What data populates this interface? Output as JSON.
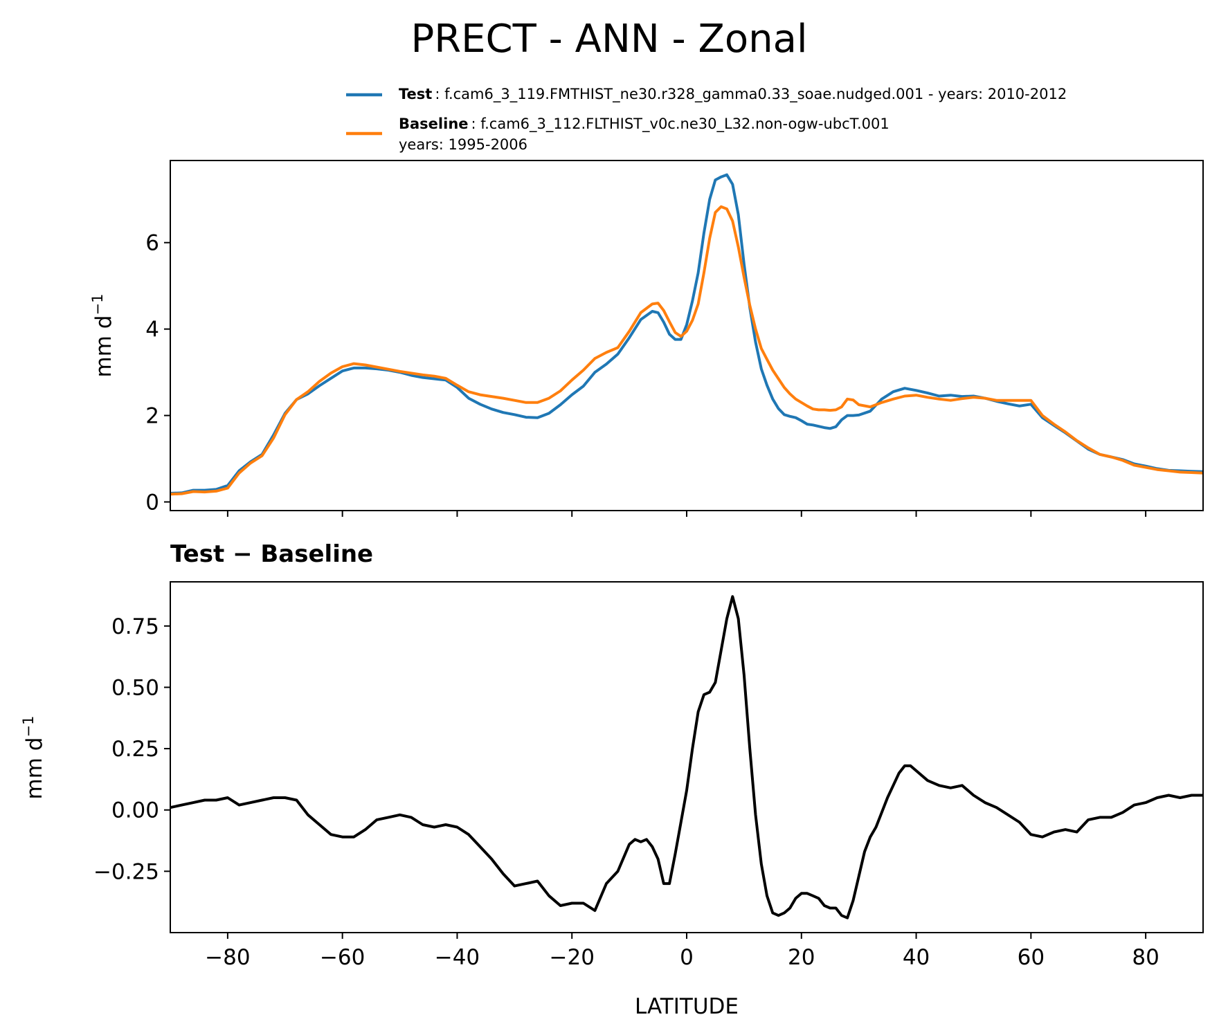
{
  "figure": {
    "title": "PRECT - ANN - Zonal"
  },
  "legend": [
    {
      "label": "Test",
      "line1": ": f.cam6_3_119.FMTHIST_ne30.r328_gamma0.33_soae.nudged.001 - years: 2010-2012",
      "line2": "",
      "color": "#1f77b4"
    },
    {
      "label": "Baseline",
      "line1": ": f.cam6_3_112.FLTHIST_v0c.ne30_L32.non-ogw-ubcT.001",
      "line2": "years: 1995-2006",
      "color": "#ff7f0e"
    }
  ],
  "chart_data": [
    {
      "type": "line",
      "title": "",
      "xlabel": "",
      "ylabel": "mm d",
      "ylabel_sup": "−1",
      "xlim": [
        -90,
        90
      ],
      "ylim": [
        -0.2,
        7.9
      ],
      "xticks": [
        -80,
        -60,
        -40,
        -20,
        0,
        20,
        40,
        60,
        80
      ],
      "yticks": [
        0,
        2,
        4,
        6
      ],
      "yticklabels": [
        "0",
        "2",
        "4",
        "6"
      ],
      "grid": false,
      "legend_position": "above",
      "series": [
        {
          "name": "Test",
          "color": "#1f77b4",
          "x": [
            -90,
            -88,
            -86,
            -84,
            -82,
            -80,
            -78,
            -76,
            -74,
            -72,
            -70,
            -68,
            -66,
            -64,
            -62,
            -60,
            -58,
            -56,
            -54,
            -52,
            -50,
            -48,
            -46,
            -44,
            -42,
            -40,
            -38,
            -36,
            -34,
            -32,
            -30,
            -28,
            -26,
            -24,
            -22,
            -20,
            -18,
            -16,
            -14,
            -12,
            -10,
            -8,
            -6,
            -5,
            -4,
            -3,
            -2,
            -1,
            0,
            1,
            2,
            3,
            4,
            5,
            6,
            7,
            8,
            9,
            10,
            11,
            12,
            13,
            14,
            15,
            16,
            17,
            18,
            19,
            20,
            21,
            22,
            23,
            24,
            25,
            26,
            27,
            28,
            29,
            30,
            32,
            34,
            36,
            38,
            40,
            42,
            44,
            46,
            48,
            50,
            52,
            54,
            56,
            58,
            60,
            62,
            64,
            66,
            68,
            70,
            72,
            74,
            76,
            78,
            80,
            82,
            84,
            86,
            88,
            90
          ],
          "y": [
            0.2,
            0.21,
            0.27,
            0.27,
            0.29,
            0.38,
            0.72,
            0.93,
            1.1,
            1.55,
            2.05,
            2.37,
            2.5,
            2.69,
            2.86,
            3.03,
            3.1,
            3.1,
            3.08,
            3.05,
            3.0,
            2.93,
            2.88,
            2.85,
            2.82,
            2.65,
            2.4,
            2.26,
            2.15,
            2.07,
            2.02,
            1.96,
            1.95,
            2.05,
            2.25,
            2.48,
            2.68,
            3.0,
            3.19,
            3.42,
            3.8,
            4.22,
            4.41,
            4.38,
            4.16,
            3.88,
            3.76,
            3.76,
            4.1,
            4.65,
            5.3,
            6.22,
            7.0,
            7.45,
            7.52,
            7.57,
            7.35,
            6.65,
            5.5,
            4.5,
            3.7,
            3.08,
            2.7,
            2.38,
            2.16,
            2.02,
            1.98,
            1.95,
            1.88,
            1.8,
            1.78,
            1.75,
            1.72,
            1.7,
            1.74,
            1.9,
            2.0,
            2.0,
            2.01,
            2.1,
            2.38,
            2.55,
            2.63,
            2.58,
            2.52,
            2.45,
            2.47,
            2.44,
            2.45,
            2.4,
            2.33,
            2.27,
            2.22,
            2.26,
            1.95,
            1.77,
            1.6,
            1.41,
            1.22,
            1.1,
            1.04,
            0.98,
            0.88,
            0.83,
            0.77,
            0.73,
            0.72,
            0.71,
            0.7
          ]
        },
        {
          "name": "Baseline",
          "color": "#ff7f0e",
          "x": [
            -90,
            -88,
            -86,
            -84,
            -82,
            -80,
            -78,
            -76,
            -74,
            -72,
            -70,
            -68,
            -66,
            -64,
            -62,
            -60,
            -58,
            -56,
            -54,
            -52,
            -50,
            -48,
            -46,
            -44,
            -42,
            -40,
            -38,
            -36,
            -34,
            -32,
            -30,
            -28,
            -26,
            -24,
            -22,
            -20,
            -18,
            -16,
            -14,
            -12,
            -10,
            -8,
            -6,
            -5,
            -4,
            -3,
            -2,
            -1,
            0,
            1,
            2,
            3,
            4,
            5,
            6,
            7,
            8,
            9,
            10,
            11,
            12,
            13,
            14,
            15,
            16,
            17,
            18,
            19,
            20,
            21,
            22,
            23,
            24,
            25,
            26,
            27,
            28,
            29,
            30,
            32,
            34,
            36,
            38,
            40,
            42,
            44,
            46,
            48,
            50,
            52,
            54,
            56,
            58,
            60,
            62,
            64,
            66,
            68,
            70,
            72,
            74,
            76,
            78,
            80,
            82,
            84,
            86,
            88,
            90
          ],
          "y": [
            0.18,
            0.19,
            0.24,
            0.23,
            0.25,
            0.32,
            0.67,
            0.9,
            1.07,
            1.48,
            2.02,
            2.37,
            2.55,
            2.79,
            2.98,
            3.13,
            3.2,
            3.17,
            3.12,
            3.07,
            3.02,
            2.98,
            2.94,
            2.91,
            2.86,
            2.7,
            2.55,
            2.48,
            2.44,
            2.4,
            2.35,
            2.3,
            2.3,
            2.4,
            2.57,
            2.82,
            3.05,
            3.32,
            3.46,
            3.57,
            3.95,
            4.38,
            4.58,
            4.6,
            4.43,
            4.17,
            3.92,
            3.83,
            3.95,
            4.2,
            4.58,
            5.3,
            6.1,
            6.7,
            6.83,
            6.78,
            6.5,
            5.9,
            5.2,
            4.55,
            4.0,
            3.55,
            3.3,
            3.05,
            2.85,
            2.65,
            2.5,
            2.38,
            2.3,
            2.22,
            2.15,
            2.13,
            2.13,
            2.12,
            2.13,
            2.2,
            2.38,
            2.36,
            2.25,
            2.2,
            2.3,
            2.38,
            2.45,
            2.47,
            2.42,
            2.38,
            2.35,
            2.39,
            2.42,
            2.4,
            2.35,
            2.35,
            2.35,
            2.35,
            2.0,
            1.8,
            1.62,
            1.42,
            1.25,
            1.1,
            1.04,
            0.96,
            0.85,
            0.8,
            0.75,
            0.72,
            0.69,
            0.68,
            0.67
          ]
        }
      ]
    },
    {
      "type": "line",
      "title": "Test − Baseline",
      "xlabel": "LATITUDE",
      "ylabel": "mm d",
      "ylabel_sup": "−1",
      "xlim": [
        -90,
        90
      ],
      "ylim": [
        -0.5,
        0.93
      ],
      "xticks": [
        -80,
        -60,
        -40,
        -20,
        0,
        20,
        40,
        60,
        80
      ],
      "xticklabels": [
        "−80",
        "−60",
        "−40",
        "−20",
        "0",
        "20",
        "40",
        "60",
        "80"
      ],
      "yticks": [
        -0.25,
        0.0,
        0.25,
        0.5,
        0.75
      ],
      "yticklabels": [
        "−0.25",
        "0.00",
        "0.25",
        "0.50",
        "0.75"
      ],
      "grid": false,
      "series": [
        {
          "name": "",
          "color": "#000000",
          "x": [
            -90,
            -88,
            -86,
            -84,
            -82,
            -80,
            -78,
            -76,
            -74,
            -72,
            -70,
            -68,
            -66,
            -64,
            -62,
            -60,
            -58,
            -56,
            -54,
            -52,
            -50,
            -48,
            -46,
            -44,
            -42,
            -40,
            -38,
            -36,
            -34,
            -32,
            -30,
            -28,
            -26,
            -24,
            -22,
            -20,
            -18,
            -16,
            -14,
            -12,
            -10,
            -9,
            -8,
            -7,
            -6,
            -5,
            -4,
            -3,
            -2,
            -1,
            0,
            1,
            2,
            3,
            4,
            5,
            6,
            7,
            8,
            9,
            10,
            11,
            12,
            13,
            14,
            15,
            16,
            17,
            18,
            19,
            20,
            21,
            22,
            23,
            24,
            25,
            26,
            27,
            28,
            29,
            30,
            31,
            32,
            33,
            34,
            35,
            36,
            37,
            38,
            39,
            40,
            42,
            44,
            46,
            48,
            50,
            52,
            54,
            56,
            58,
            60,
            62,
            64,
            66,
            68,
            70,
            72,
            74,
            76,
            78,
            80,
            82,
            84,
            86,
            88,
            90
          ],
          "y": [
            0.01,
            0.02,
            0.03,
            0.04,
            0.04,
            0.05,
            0.02,
            0.03,
            0.04,
            0.05,
            0.05,
            0.04,
            -0.02,
            -0.06,
            -0.1,
            -0.11,
            -0.11,
            -0.08,
            -0.04,
            -0.03,
            -0.02,
            -0.03,
            -0.06,
            -0.07,
            -0.06,
            -0.07,
            -0.1,
            -0.15,
            -0.2,
            -0.26,
            -0.31,
            -0.3,
            -0.29,
            -0.35,
            -0.39,
            -0.38,
            -0.38,
            -0.41,
            -0.3,
            -0.25,
            -0.14,
            -0.12,
            -0.13,
            -0.12,
            -0.15,
            -0.2,
            -0.3,
            -0.3,
            -0.18,
            -0.05,
            0.08,
            0.25,
            0.4,
            0.47,
            0.48,
            0.52,
            0.65,
            0.78,
            0.87,
            0.78,
            0.55,
            0.25,
            -0.02,
            -0.22,
            -0.35,
            -0.42,
            -0.43,
            -0.42,
            -0.4,
            -0.36,
            -0.34,
            -0.34,
            -0.35,
            -0.36,
            -0.39,
            -0.4,
            -0.4,
            -0.43,
            -0.44,
            -0.37,
            -0.27,
            -0.17,
            -0.11,
            -0.07,
            -0.01,
            0.05,
            0.1,
            0.15,
            0.18,
            0.18,
            0.16,
            0.12,
            0.1,
            0.09,
            0.1,
            0.06,
            0.03,
            0.01,
            -0.02,
            -0.05,
            -0.1,
            -0.11,
            -0.09,
            -0.08,
            -0.09,
            -0.04,
            -0.03,
            -0.03,
            -0.01,
            0.02,
            0.03,
            0.05,
            0.06,
            0.05,
            0.06,
            0.06
          ]
        }
      ]
    }
  ]
}
